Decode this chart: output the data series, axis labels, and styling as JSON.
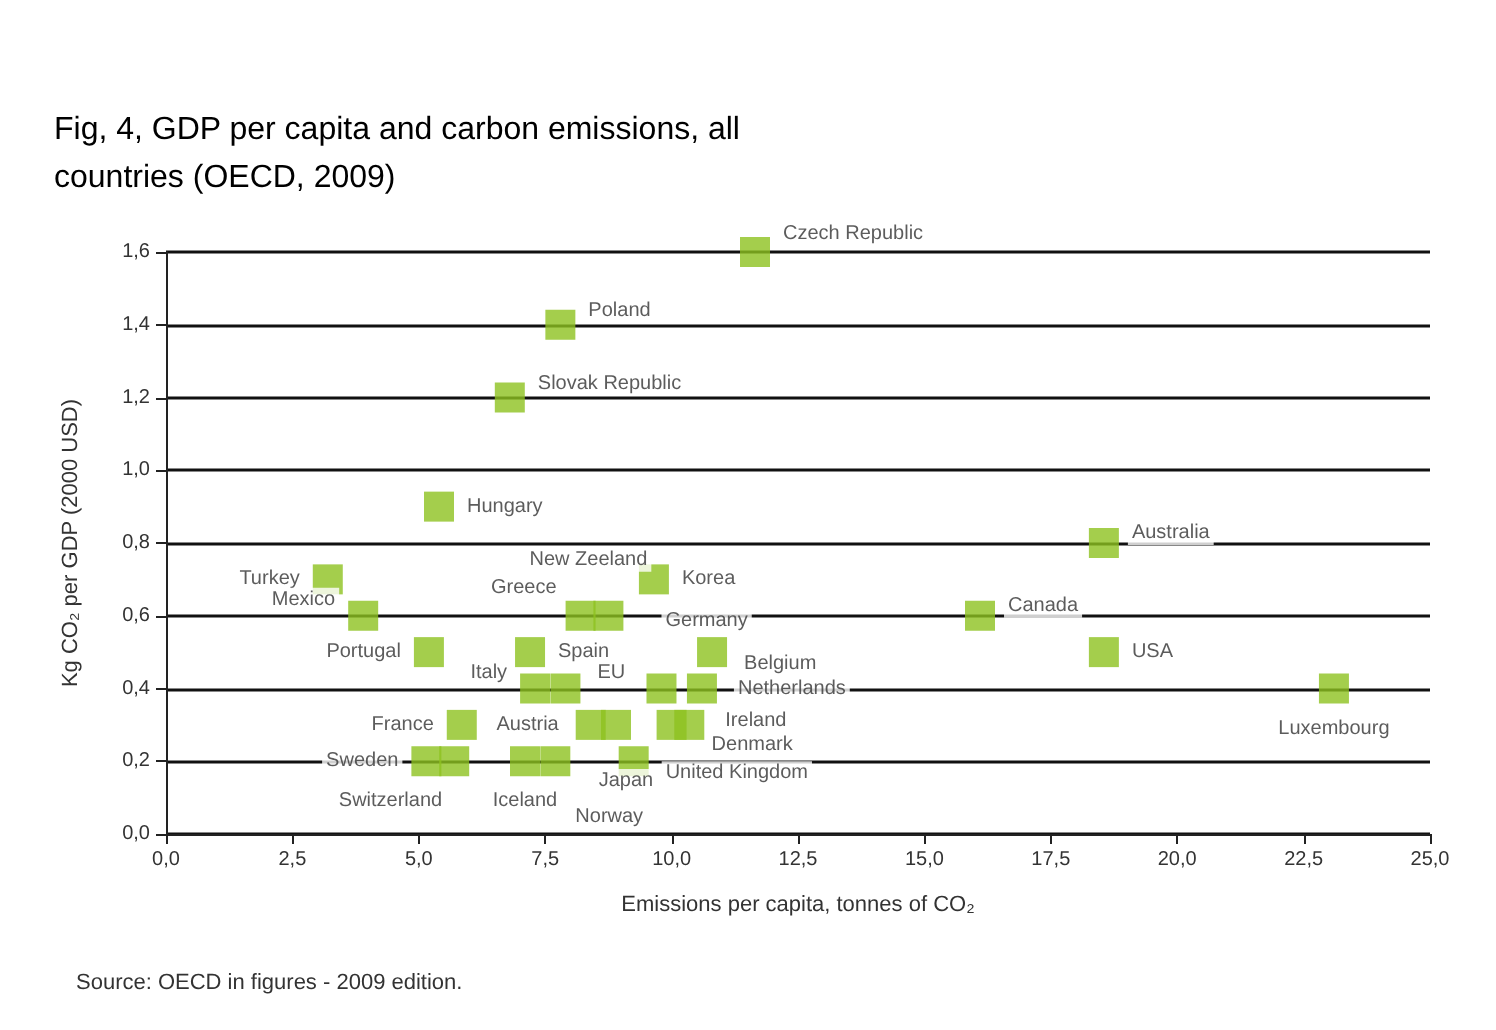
{
  "chart_data": {
    "type": "scatter",
    "title": "Fig, 4, GDP per capita and carbon emissions, all\ncountries (OECD, 2009)",
    "xlabel": "Emissions per capita, tonnes of CO₂",
    "ylabel": "Kg CO₂ per GDP (2000 USD)",
    "x": [
      11.65,
      7.8,
      6.8,
      5.4,
      3.2,
      3.9,
      5.2,
      5.85,
      5.15,
      5.7,
      7.1,
      7.7,
      7.2,
      7.3,
      7.9,
      8.2,
      8.75,
      9.65,
      8.4,
      8.9,
      9.25,
      9.8,
      10.0,
      10.35,
      10.6,
      10.8,
      18.55,
      16.1,
      18.55,
      23.1
    ],
    "values": [
      1.6,
      1.4,
      1.2,
      0.9,
      0.7,
      0.6,
      0.5,
      0.3,
      0.2,
      0.2,
      0.2,
      0.2,
      0.5,
      0.4,
      0.4,
      0.6,
      0.6,
      0.7,
      0.3,
      0.3,
      0.2,
      0.4,
      0.3,
      0.3,
      0.4,
      0.5,
      0.8,
      0.6,
      0.5,
      0.4
    ],
    "color": "#8dc21f",
    "marker": "square",
    "annotations": [
      {
        "text": "Czech Republic",
        "x": 11.65,
        "y": 1.6
      },
      {
        "text": "Poland",
        "x": 7.8,
        "y": 1.4
      },
      {
        "text": "Slovak Republic",
        "x": 6.8,
        "y": 1.2
      },
      {
        "text": "Hungary",
        "x": 5.4,
        "y": 0.9
      },
      {
        "text": "Turkey",
        "x": 3.2,
        "y": 0.7
      },
      {
        "text": "Mexico",
        "x": 3.9,
        "y": 0.6
      },
      {
        "text": "Portugal",
        "x": 5.2,
        "y": 0.5
      },
      {
        "text": "France",
        "x": 5.85,
        "y": 0.3
      },
      {
        "text": "Sweden",
        "x": 5.15,
        "y": 0.2
      },
      {
        "text": "Switzerland",
        "x": 5.7,
        "y": 0.2
      },
      {
        "text": "Iceland",
        "x": 7.1,
        "y": 0.2
      },
      {
        "text": "Norway",
        "x": 7.7,
        "y": 0.2
      },
      {
        "text": "Spain",
        "x": 7.2,
        "y": 0.5
      },
      {
        "text": "Italy",
        "x": 7.3,
        "y": 0.4
      },
      {
        "text": "EU",
        "x": 7.9,
        "y": 0.4
      },
      {
        "text": "Greece",
        "x": 8.2,
        "y": 0.6
      },
      {
        "text": "New Zeeland",
        "x": 8.75,
        "y": 0.6
      },
      {
        "text": "Korea",
        "x": 9.65,
        "y": 0.7
      },
      {
        "text": "Austria",
        "x": 8.4,
        "y": 0.3
      },
      {
        "text": "Japan",
        "x": 8.9,
        "y": 0.3
      },
      {
        "text": "United Kingdom",
        "x": 9.25,
        "y": 0.2
      },
      {
        "text": "Germany",
        "x": 9.8,
        "y": 0.4
      },
      {
        "text": "Denmark",
        "x": 10.0,
        "y": 0.3
      },
      {
        "text": "Ireland",
        "x": 10.35,
        "y": 0.3
      },
      {
        "text": "Netherlands",
        "x": 10.6,
        "y": 0.4
      },
      {
        "text": "Belgium",
        "x": 10.8,
        "y": 0.5
      },
      {
        "text": "Australia",
        "x": 18.55,
        "y": 0.8
      },
      {
        "text": "Canada",
        "x": 16.1,
        "y": 0.6
      },
      {
        "text": "USA",
        "x": 18.55,
        "y": 0.5
      },
      {
        "text": "Luxembourg",
        "x": 23.1,
        "y": 0.4
      },
      "Source: OECD in figures - 2009 edition."
    ],
    "xlim": [
      0,
      25
    ],
    "xticks": [
      {
        "value": 0,
        "label": "0,0"
      },
      {
        "value": 2.5,
        "label": "2,5"
      },
      {
        "value": 5,
        "label": "5,0"
      },
      {
        "value": 7.5,
        "label": "7,5"
      },
      {
        "value": 10,
        "label": "10,0"
      },
      {
        "value": 12.5,
        "label": "12,5"
      },
      {
        "value": 15,
        "label": "15,0"
      },
      {
        "value": 17.5,
        "label": "17,5"
      },
      {
        "value": 20,
        "label": "20,0"
      },
      {
        "value": 22.5,
        "label": "22,5"
      },
      {
        "value": 25,
        "label": "25,0"
      }
    ],
    "ylim": [
      0,
      1.6
    ],
    "yticks": [
      {
        "value": 0,
        "label": "0,0"
      },
      {
        "value": 0.2,
        "label": "0,2"
      },
      {
        "value": 0.4,
        "label": "0,4"
      },
      {
        "value": 0.6,
        "label": "0,6"
      },
      {
        "value": 0.8,
        "label": "0,8"
      },
      {
        "value": 1.0,
        "label": "1,0"
      },
      {
        "value": 1.2,
        "label": "1,2"
      },
      {
        "value": 1.4,
        "label": "1,4"
      },
      {
        "value": 1.6,
        "label": "1,6"
      }
    ],
    "grid": "y"
  }
}
